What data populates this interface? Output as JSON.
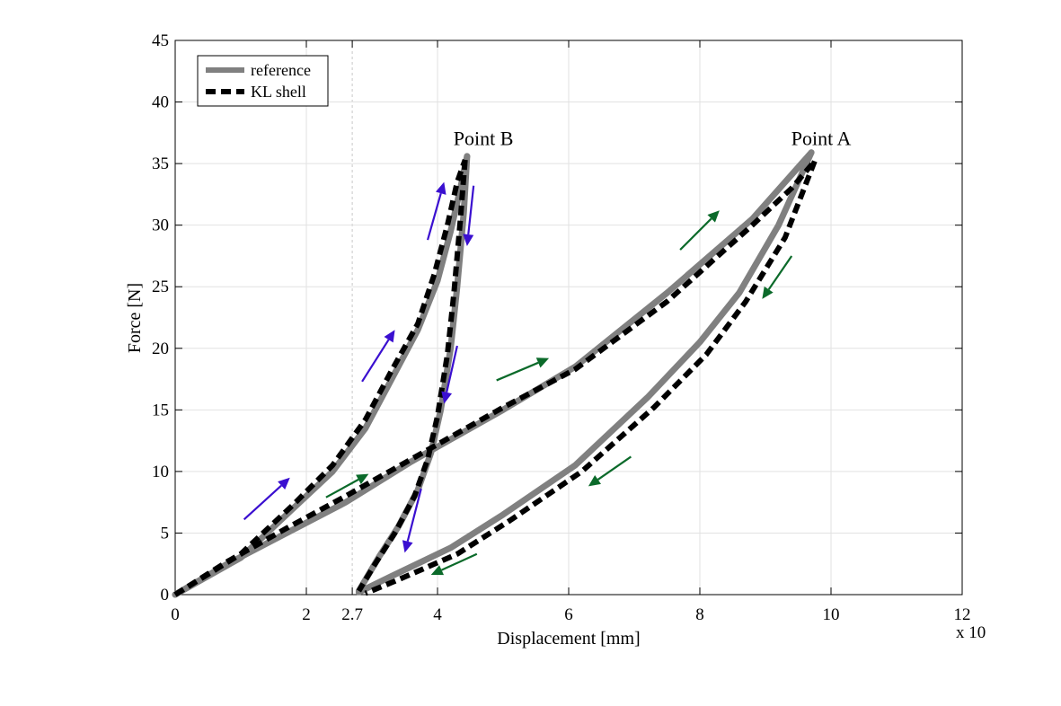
{
  "chart_data": {
    "type": "line",
    "title": "",
    "xlabel": "Displacement [mm]",
    "ylabel": "Force [N]",
    "xlim": [
      0,
      12
    ],
    "ylim": [
      0,
      45
    ],
    "x_ticks": [
      0,
      2,
      2.7,
      4,
      6,
      8,
      10,
      12
    ],
    "x_tick_labels": [
      "0",
      "2",
      "2.7",
      "4",
      "6",
      "8",
      "10",
      "12"
    ],
    "y_ticks": [
      0,
      5,
      10,
      15,
      20,
      25,
      30,
      35,
      40,
      45
    ],
    "y_tick_labels": [
      "0",
      "5",
      "10",
      "15",
      "20",
      "25",
      "30",
      "35",
      "40",
      "45"
    ],
    "x_multiplier": "x 10",
    "grid": true,
    "legend_position": "top-left",
    "series": [
      {
        "name": "reference",
        "color": "#808080",
        "style": "solid",
        "segments": [
          [
            [
              0,
              0
            ],
            [
              1.0,
              3.0
            ],
            [
              1.8,
              7.0
            ],
            [
              2.4,
              10.0
            ],
            [
              2.9,
              13.5
            ],
            [
              3.3,
              17.5
            ],
            [
              3.7,
              21.5
            ],
            [
              4.0,
              25.5
            ],
            [
              4.2,
              29.5
            ],
            [
              4.35,
              33.0
            ],
            [
              4.45,
              35.6
            ]
          ],
          [
            [
              4.45,
              35.6
            ],
            [
              4.4,
              31.0
            ],
            [
              4.3,
              25.0
            ],
            [
              4.2,
              20.0
            ],
            [
              4.05,
              15.0
            ],
            [
              3.9,
              11.5
            ],
            [
              3.7,
              8.5
            ],
            [
              3.4,
              5.5
            ],
            [
              3.1,
              3.0
            ],
            [
              2.8,
              0.3
            ]
          ],
          [
            [
              0,
              0
            ],
            [
              0.8,
              2.5
            ],
            [
              1.7,
              5.0
            ],
            [
              2.6,
              7.5
            ],
            [
              3.6,
              10.8
            ],
            [
              5.0,
              15.0
            ],
            [
              6.1,
              18.5
            ],
            [
              7.5,
              24.5
            ],
            [
              8.8,
              30.5
            ],
            [
              9.3,
              33.5
            ],
            [
              9.7,
              35.9
            ]
          ],
          [
            [
              9.7,
              35.9
            ],
            [
              9.2,
              30.0
            ],
            [
              8.6,
              24.5
            ],
            [
              8.0,
              20.5
            ],
            [
              7.2,
              16.0
            ],
            [
              6.1,
              10.5
            ],
            [
              5.0,
              6.5
            ],
            [
              4.2,
              3.8
            ],
            [
              3.3,
              1.5
            ],
            [
              2.8,
              0.2
            ]
          ]
        ]
      },
      {
        "name": "KL shell",
        "color": "#000000",
        "style": "dashed",
        "segments": [
          [
            [
              0,
              0
            ],
            [
              1.0,
              3.3
            ],
            [
              1.8,
              7.3
            ],
            [
              2.4,
              10.5
            ],
            [
              2.9,
              14.2
            ],
            [
              3.3,
              18.2
            ],
            [
              3.7,
              22.0
            ],
            [
              3.95,
              26.0
            ],
            [
              4.15,
              30.0
            ],
            [
              4.3,
              33.5
            ],
            [
              4.42,
              35.3
            ]
          ],
          [
            [
              4.42,
              35.3
            ],
            [
              4.35,
              30.5
            ],
            [
              4.25,
              24.5
            ],
            [
              4.15,
              19.5
            ],
            [
              4.0,
              14.5
            ],
            [
              3.85,
              11.0
            ],
            [
              3.65,
              8.0
            ],
            [
              3.35,
              5.0
            ],
            [
              3.05,
              2.5
            ],
            [
              2.8,
              0.3
            ]
          ],
          [
            [
              0,
              0
            ],
            [
              0.8,
              2.7
            ],
            [
              1.7,
              5.4
            ],
            [
              2.6,
              8.0
            ],
            [
              3.6,
              11.0
            ],
            [
              5.0,
              15.2
            ],
            [
              6.1,
              18.3
            ],
            [
              7.5,
              23.8
            ],
            [
              8.8,
              30.0
            ],
            [
              9.4,
              33.0
            ],
            [
              9.75,
              35.2
            ]
          ],
          [
            [
              9.75,
              35.2
            ],
            [
              9.3,
              29.0
            ],
            [
              8.7,
              23.8
            ],
            [
              8.1,
              19.5
            ],
            [
              7.3,
              15.2
            ],
            [
              6.2,
              10.0
            ],
            [
              5.1,
              6.0
            ],
            [
              4.3,
              3.3
            ],
            [
              3.4,
              1.2
            ],
            [
              2.9,
              0.1
            ]
          ]
        ]
      }
    ],
    "arrows": {
      "blue_color": "#3a0fd0",
      "green_color": "#0b6a2a",
      "blue": [
        {
          "from": [
            1.05,
            6.1
          ],
          "to": [
            1.75,
            9.5
          ]
        },
        {
          "from": [
            2.85,
            17.3
          ],
          "to": [
            3.35,
            21.5
          ]
        },
        {
          "from": [
            3.85,
            28.8
          ],
          "to": [
            4.1,
            33.5
          ]
        },
        {
          "from": [
            4.55,
            33.2
          ],
          "to": [
            4.45,
            28.3
          ]
        },
        {
          "from": [
            4.3,
            20.2
          ],
          "to": [
            4.1,
            15.5
          ]
        },
        {
          "from": [
            3.75,
            8.6
          ],
          "to": [
            3.5,
            3.4
          ]
        }
      ],
      "green": [
        {
          "from": [
            2.3,
            7.9
          ],
          "to": [
            2.95,
            9.8
          ]
        },
        {
          "from": [
            4.9,
            17.4
          ],
          "to": [
            5.7,
            19.2
          ]
        },
        {
          "from": [
            7.7,
            28.0
          ],
          "to": [
            8.3,
            31.2
          ]
        },
        {
          "from": [
            9.4,
            27.5
          ],
          "to": [
            8.95,
            24.0
          ]
        },
        {
          "from": [
            6.95,
            11.2
          ],
          "to": [
            6.3,
            8.8
          ]
        },
        {
          "from": [
            4.6,
            3.3
          ],
          "to": [
            3.9,
            1.6
          ]
        }
      ]
    },
    "annotations": [
      {
        "text": "Point B",
        "x": 4.7,
        "y": 37.0
      },
      {
        "text": "Point A",
        "x": 9.85,
        "y": 37.0
      }
    ]
  }
}
